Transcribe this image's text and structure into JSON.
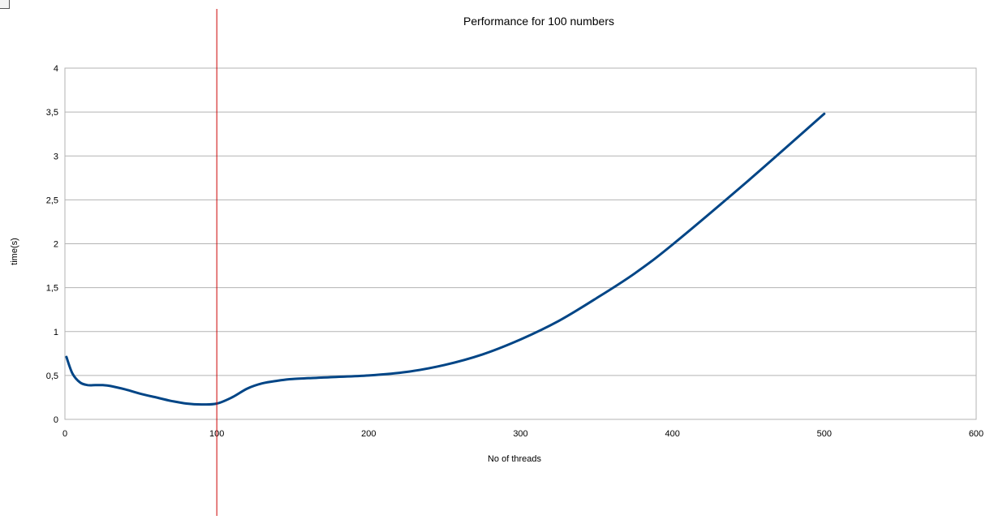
{
  "chart_data": {
    "type": "line",
    "title": "Performance for 100 numbers",
    "xlabel": "No of threads",
    "ylabel": "time(s)",
    "xlim": [
      0,
      600
    ],
    "ylim": [
      0,
      4
    ],
    "x_ticks": [
      "0",
      "100",
      "200",
      "300",
      "400",
      "500",
      "600"
    ],
    "y_ticks": [
      "0",
      "0,5",
      "1",
      "1,5",
      "2",
      "2,5",
      "3",
      "3,5",
      "4"
    ],
    "grid": true,
    "legend": "none",
    "reference_line": {
      "x": 100,
      "color": "#cc0000"
    },
    "series": [
      {
        "color": "#004586",
        "x": [
          1,
          5,
          10,
          15,
          20,
          25,
          30,
          40,
          50,
          60,
          70,
          80,
          90,
          100,
          110,
          120,
          130,
          140,
          150,
          175,
          200,
          225,
          250,
          275,
          300,
          325,
          350,
          375,
          400,
          450,
          500
        ],
        "y": [
          0.71,
          0.52,
          0.42,
          0.39,
          0.39,
          0.39,
          0.38,
          0.34,
          0.29,
          0.25,
          0.21,
          0.18,
          0.17,
          0.18,
          0.25,
          0.35,
          0.41,
          0.44,
          0.46,
          0.48,
          0.5,
          0.54,
          0.62,
          0.74,
          0.91,
          1.12,
          1.38,
          1.66,
          1.99,
          2.72,
          3.48
        ]
      }
    ]
  }
}
